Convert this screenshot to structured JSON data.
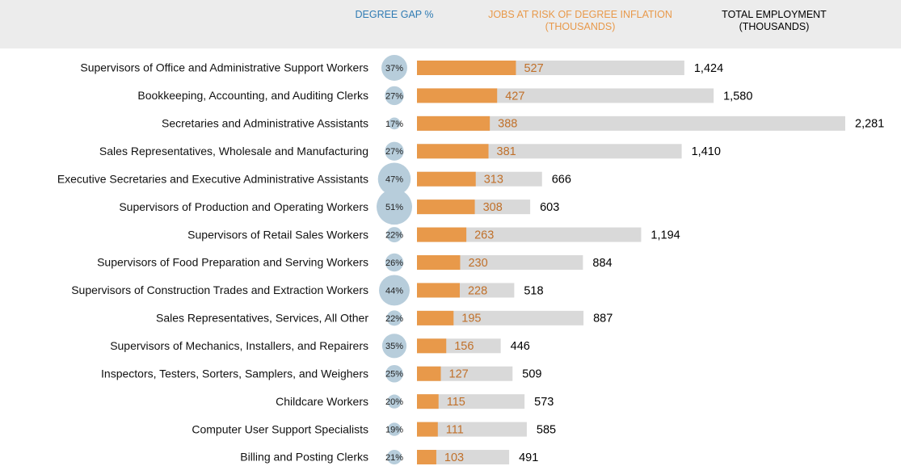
{
  "chart_data": {
    "type": "bar",
    "categories": [
      "Supervisors of Office and Administrative Support Workers",
      "Bookkeeping, Accounting, and Auditing Clerks",
      "Secretaries and Administrative Assistants",
      "Sales Representatives, Wholesale and Manufacturing",
      "Executive Secretaries and Executive Administrative Assistants",
      "Supervisors of Production and Operating Workers",
      "Supervisors of Retail Sales Workers",
      "Supervisors of Food Preparation and Serving Workers",
      "Supervisors of Construction Trades and Extraction Workers",
      "Sales Representatives, Services, All Other",
      "Supervisors of Mechanics, Installers, and Repairers",
      "Inspectors, Testers, Sorters, Samplers, and Weighers",
      "Childcare Workers",
      "Computer User Support Specialists",
      "Billing and Posting Clerks"
    ],
    "series": [
      {
        "name": "DEGREE GAP %",
        "kind": "bubble",
        "color": "#b7cddb",
        "header_color": "#2f7bb3",
        "values": [
          37,
          27,
          17,
          27,
          47,
          51,
          22,
          26,
          44,
          22,
          35,
          25,
          20,
          19,
          21
        ],
        "value_labels": [
          "37%",
          "27%",
          "17%",
          "27%",
          "47%",
          "51%",
          "22%",
          "26%",
          "44%",
          "22%",
          "35%",
          "25%",
          "20%",
          "19%",
          "21%"
        ]
      },
      {
        "name": "JOBS AT RISK OF DEGREE INFLATION\n(THOUSANDS)",
        "kind": "front",
        "color": "#e8994a",
        "header_color": "#e8994a",
        "label_color": "#c0702a",
        "values": [
          527,
          427,
          388,
          381,
          313,
          308,
          263,
          230,
          228,
          195,
          156,
          127,
          115,
          111,
          103
        ]
      },
      {
        "name": "TOTAL EMPLOYMENT\n(THOUSANDS)",
        "kind": "back",
        "color": "#d9d9d9",
        "header_color": "#000000",
        "label_color": "#000000",
        "values": [
          1424,
          1580,
          2281,
          1410,
          666,
          603,
          1194,
          884,
          518,
          887,
          446,
          509,
          573,
          585,
          491
        ],
        "value_labels": [
          "1,424",
          "1,580",
          "2,281",
          "1,410",
          "666",
          "603",
          "1,194",
          "884",
          "518",
          "887",
          "446",
          "509",
          "573",
          "585",
          "491"
        ]
      }
    ]
  }
}
